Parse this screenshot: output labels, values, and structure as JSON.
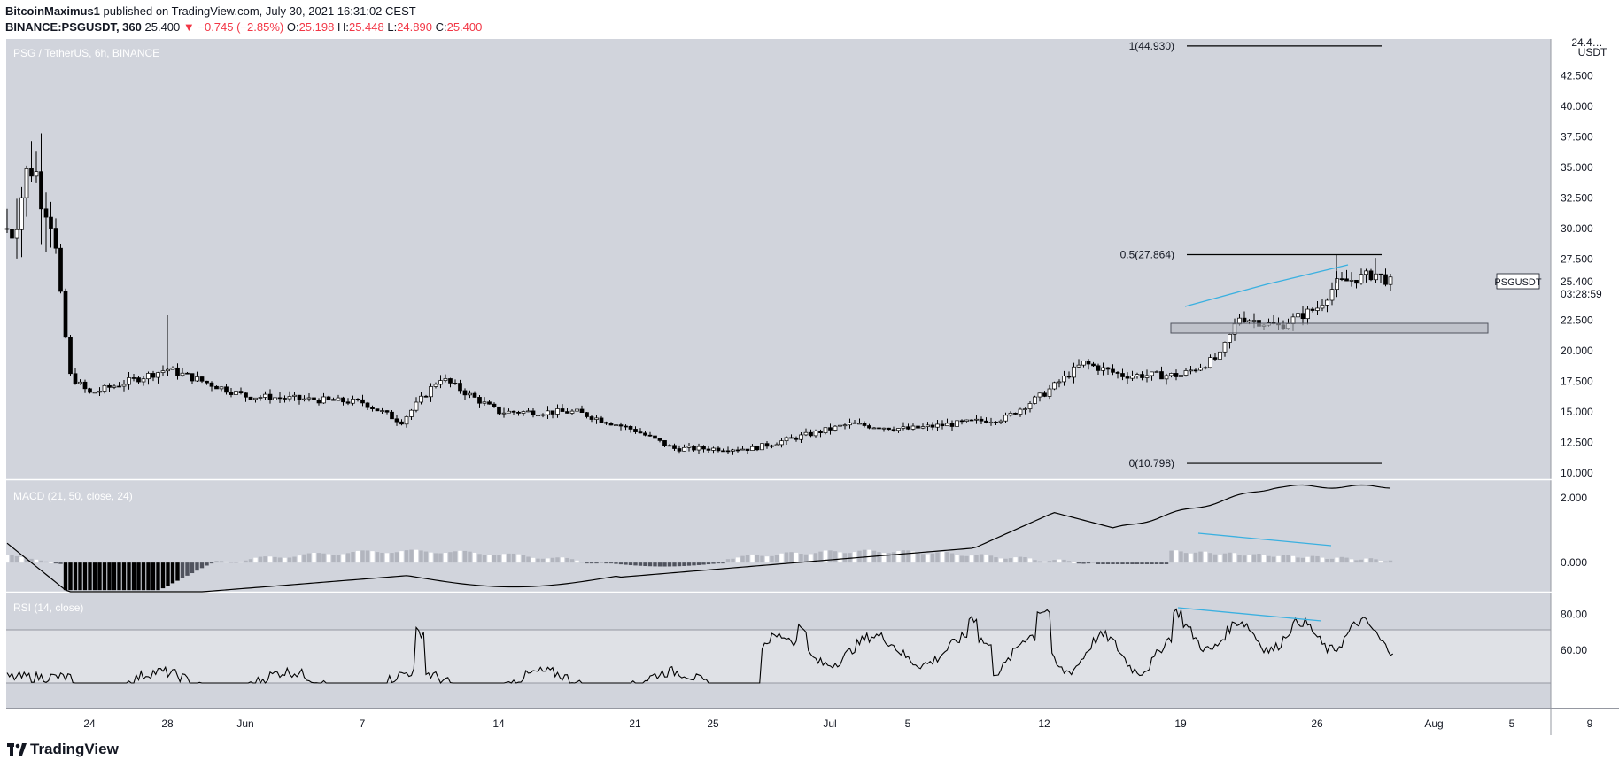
{
  "header": {
    "publisher": "BitcoinMaximus1",
    "published_text": "published on TradingView.com, July 30, 2021 16:31:02 CEST",
    "symbol": "BINANCE:PSGUSDT, 360",
    "last": "25.400",
    "change": "▼ −0.745 (−2.85%)",
    "o_label": "O:",
    "o": "25.198",
    "h_label": "H:",
    "h": "25.448",
    "l_label": "L:",
    "l": "24.890",
    "c_label": "C:",
    "c": "25.400"
  },
  "pane_labels": {
    "main": "PSG / TetherUS, 6h, BINANCE",
    "macd": "MACD (21, 50, close, 24)",
    "rsi": "RSI (14, close)"
  },
  "price_axis": {
    "unit_top": "24.4…",
    "unit": "USDT",
    "ticks": [
      "42.500",
      "40.000",
      "37.500",
      "35.000",
      "32.500",
      "30.000",
      "27.500",
      "25.000",
      "22.500",
      "20.000",
      "17.500",
      "15.000",
      "12.500",
      "10.000"
    ]
  },
  "macd_axis": {
    "ticks": [
      "2.000",
      "0.000"
    ]
  },
  "rsi_axis": {
    "ticks": [
      "80.00",
      "60.00"
    ]
  },
  "time_axis": {
    "ticks": [
      "24",
      "28",
      "Jun",
      "7",
      "14",
      "21",
      "25",
      "Jul",
      "5",
      "12",
      "19",
      "26",
      "Aug",
      "5",
      "9"
    ]
  },
  "fib_levels": [
    {
      "label": "1(44.930)",
      "value": 44.93
    },
    {
      "label": "0.5(27.864)",
      "value": 27.864
    },
    {
      "label": "0(10.798)",
      "value": 10.798
    }
  ],
  "price_tag": {
    "symbol": "PSGUSDT",
    "price": "25.400",
    "countdown": "03:28:59"
  },
  "branding": {
    "logo_text": "TradingView"
  },
  "colors": {
    "pane_bg": "#d1d4dc",
    "rsi_band": "#dfe1e6",
    "trendline": "#3ab0e0",
    "down": "#f23645",
    "candle": "#000000"
  },
  "chart_data": {
    "type": "candlestick",
    "interval": "6h",
    "price_range": [
      9.5,
      45.5
    ],
    "price_series_approx": [
      {
        "date": "2021-05-20",
        "price": 30.0
      },
      {
        "date": "2021-05-21",
        "price": 35.5
      },
      {
        "date": "2021-05-22",
        "price": 31.5
      },
      {
        "date": "2021-05-23",
        "price": 18.0
      },
      {
        "date": "2021-05-24",
        "price": 16.5
      },
      {
        "date": "2021-05-28",
        "price": 18.5
      },
      {
        "date": "2021-06-01",
        "price": 16.3
      },
      {
        "date": "2021-06-07",
        "price": 15.8
      },
      {
        "date": "2021-06-09",
        "price": 14.2
      },
      {
        "date": "2021-06-11",
        "price": 17.8
      },
      {
        "date": "2021-06-14",
        "price": 15.0
      },
      {
        "date": "2021-06-18",
        "price": 15.0
      },
      {
        "date": "2021-06-21",
        "price": 13.5
      },
      {
        "date": "2021-06-23",
        "price": 12.0
      },
      {
        "date": "2021-06-27",
        "price": 12.0
      },
      {
        "date": "2021-07-02",
        "price": 14.0
      },
      {
        "date": "2021-07-05",
        "price": 13.6
      },
      {
        "date": "2021-07-10",
        "price": 14.5
      },
      {
        "date": "2021-07-12",
        "price": 16.5
      },
      {
        "date": "2021-07-14",
        "price": 19.0
      },
      {
        "date": "2021-07-16",
        "price": 18.0
      },
      {
        "date": "2021-07-19",
        "price": 18.0
      },
      {
        "date": "2021-07-21",
        "price": 19.5
      },
      {
        "date": "2021-07-22",
        "price": 22.8
      },
      {
        "date": "2021-07-24",
        "price": 22.0
      },
      {
        "date": "2021-07-26",
        "price": 23.5
      },
      {
        "date": "2021-07-27",
        "price": 25.5
      },
      {
        "date": "2021-07-29",
        "price": 26.3
      },
      {
        "date": "2021-07-30",
        "price": 25.4
      }
    ],
    "support_zone": [
      21.1,
      21.9
    ],
    "macd_range": [
      -0.9,
      2.55
    ],
    "rsi_range": [
      28,
      92
    ],
    "rsi_band": [
      50,
      70
    ]
  }
}
